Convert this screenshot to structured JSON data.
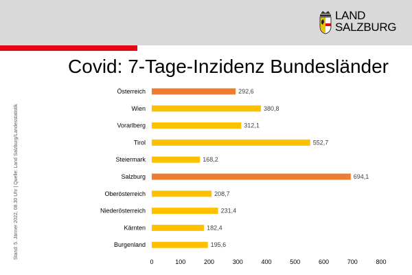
{
  "header": {
    "logo_line1": "LAND",
    "logo_line2": "SALZBURG",
    "band_color": "#d9d9d9",
    "accent_color": "#e30613"
  },
  "side_note": "Stand: 5. Jänner 2022, 08.30 Uhr | Quelle: Land Salzburg/Landesstatistik",
  "chart_data": {
    "type": "bar",
    "orientation": "horizontal",
    "title": "Covid: 7-Tage-Inzidenz Bundesländer",
    "categories": [
      "Österreich",
      "Wien",
      "Vorarlberg",
      "Tirol",
      "Steiermark",
      "Salzburg",
      "Oberösterreich",
      "Niederösterreich",
      "Kärnten",
      "Burgenland"
    ],
    "values": [
      292.6,
      380.8,
      312.1,
      552.7,
      168.2,
      694.1,
      208.7,
      231.4,
      182.4,
      195.6
    ],
    "value_labels": [
      "292,6",
      "380,8",
      "312,1",
      "552,7",
      "168,2",
      "694,1",
      "208,7",
      "231,4",
      "182,4",
      "195,6"
    ],
    "highlight": [
      true,
      false,
      false,
      false,
      false,
      true,
      false,
      false,
      false,
      false
    ],
    "colors": {
      "default": "#ffc000",
      "highlight": "#ed7d31"
    },
    "xlim": [
      0,
      800
    ],
    "xticks": [
      0,
      100,
      200,
      300,
      400,
      500,
      600,
      700,
      800
    ],
    "xlabel": "",
    "ylabel": "",
    "grid": false,
    "legend": "none"
  }
}
